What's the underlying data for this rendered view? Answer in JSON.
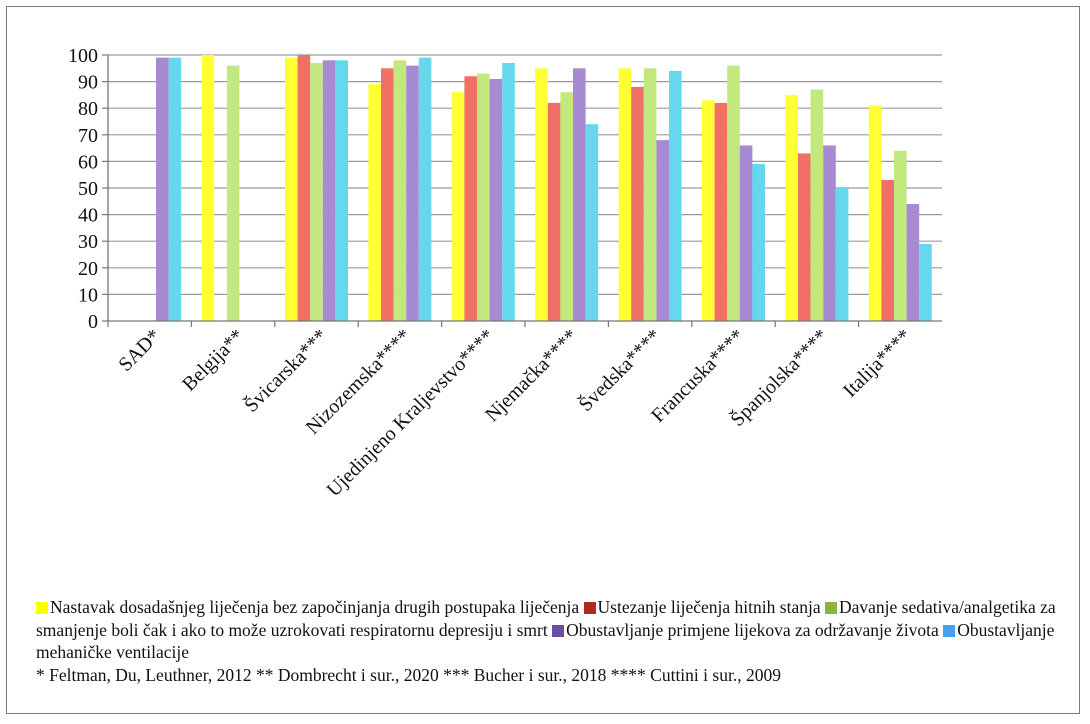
{
  "chart_data": {
    "type": "bar",
    "categories": [
      "SAD*",
      "Belgija**",
      "Švicarska***",
      "Nizozemska****",
      "Ujedinjeno Kraljevstvo****",
      "Njemačka****",
      "Švedska****",
      "Francuska****",
      "Španjolska****",
      "Italija****"
    ],
    "series": [
      {
        "name": "Nastavak dosadašnjeg liječenja bez započinjanja drugih postupaka liječenja",
        "color": "#ffff33",
        "values": [
          null,
          100,
          99,
          89,
          86,
          95,
          95,
          83,
          85,
          81
        ]
      },
      {
        "name": "Ustezanje liječenja hitnih stanja",
        "color": "#f07066",
        "values": [
          null,
          null,
          100,
          95,
          92,
          82,
          88,
          82,
          63,
          53
        ]
      },
      {
        "name": "Davanje sedativa/analgetika za smanjenje boli čak i ako to može uzrokovati respiratornu depresiju i smrt",
        "color": "#c2e87e",
        "values": [
          null,
          96,
          97,
          98,
          93,
          86,
          95,
          96,
          87,
          64
        ]
      },
      {
        "name": "Obustavljanje primjene lijekova za održavanje života",
        "color": "#a88ad2",
        "values": [
          99,
          null,
          98,
          96,
          91,
          95,
          68,
          66,
          66,
          44
        ]
      },
      {
        "name": "Obustavljanje mehaničke ventilacije",
        "color": "#66d8ee",
        "values": [
          99,
          null,
          98,
          99,
          97,
          74,
          94,
          59,
          50,
          29
        ]
      }
    ],
    "ylim": [
      0,
      100
    ],
    "yticks": [
      0,
      10,
      20,
      30,
      40,
      50,
      60,
      70,
      80,
      90,
      100
    ],
    "grid": true,
    "legend_position": "bottom"
  },
  "legend": {
    "items": [
      {
        "label": "Nastavak dosadašnjeg liječenja bez započinjanja drugih postupaka liječenja",
        "color": "#ffff00"
      },
      {
        "label": "Ustezanje liječenja hitnih stanja",
        "color": "#b02a1e"
      },
      {
        "label": "Davanje sedativa/analgetika za smanjenje boli čak i ako to može uzrokovati respiratornu depresiju i smrt",
        "color": "#8db04a"
      },
      {
        "label": "Obustavljanje primjene lijekova za održavanje života",
        "color": "#6a4fa0"
      },
      {
        "label": "Obustavljanje mehaničke ventilacije",
        "color": "#4aa0f0"
      }
    ],
    "sources": "* Feltman, Du, Leuthner, 2012 ** Dombrecht i sur., 2020 *** Bucher i sur., 2018 **** Cuttini i sur., 2009"
  }
}
